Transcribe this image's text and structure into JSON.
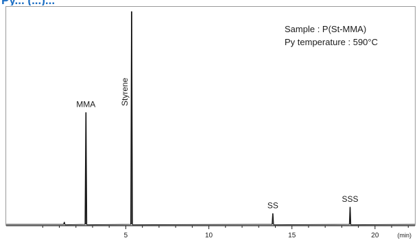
{
  "header": {
    "title_fragment": "Py... (...)..."
  },
  "annotation": {
    "sample": "Sample : P(St-MMA)",
    "py_temperature": "Py temperature : 590°C"
  },
  "chart_data": {
    "type": "line",
    "title": "",
    "xlabel": "",
    "ylabel": "",
    "x_unit": "(min)",
    "xlim": [
      0,
      22.5
    ],
    "ylim": [
      0,
      100
    ],
    "x_ticks": [
      5,
      10,
      15,
      20
    ],
    "x_tick_labels": [
      "5",
      "10",
      "15",
      "20"
    ],
    "grid": false,
    "baseline": 1,
    "series": [
      {
        "values": [
          {
            "x": 1.3,
            "y": 2
          },
          {
            "x": 2.6,
            "y": 53
          },
          {
            "x": 5.35,
            "y": 100
          },
          {
            "x": 13.85,
            "y": 6
          },
          {
            "x": 18.5,
            "y": 9
          }
        ]
      }
    ],
    "peak_labels": [
      {
        "name": "MMA",
        "x": 2.6
      },
      {
        "name": "Styrene",
        "x": 5.35
      },
      {
        "name": "SS",
        "x": 13.85
      },
      {
        "name": "SSS",
        "x": 18.5
      }
    ]
  }
}
